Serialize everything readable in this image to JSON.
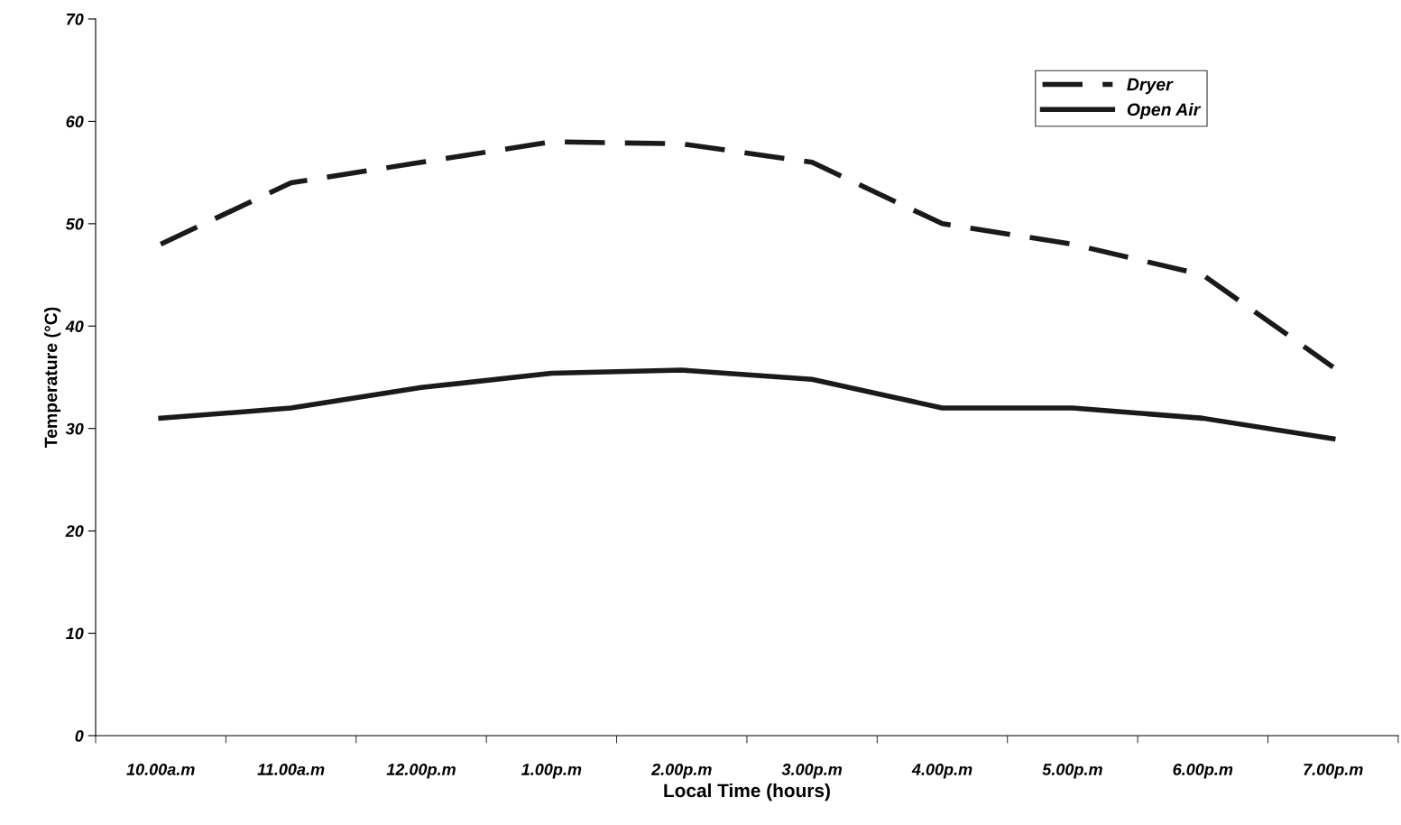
{
  "chart_data": {
    "type": "line",
    "xlabel": "Local Time (hours)",
    "ylabel": "Temperature (°C)",
    "categories": [
      "10.00a.m",
      "11.00a.m",
      "12.00p.m",
      "1.00p.m",
      "2.00p.m",
      "3.00p.m",
      "4.00p.m",
      "5.00p.m",
      "6.00p.m",
      "7.00p.m"
    ],
    "series": [
      {
        "name": "Dryer",
        "color": "#1a1a1a",
        "line_style": "dashed",
        "values": [
          48,
          54,
          56,
          58,
          57.8,
          56,
          50,
          48,
          45,
          36
        ]
      },
      {
        "name": "Open Air",
        "color": "#1a1a1a",
        "line_style": "solid",
        "values": [
          31,
          32,
          34,
          35.4,
          35.7,
          34.8,
          32,
          32,
          31,
          29
        ]
      }
    ],
    "ylim": [
      0,
      70
    ],
    "yticks": [
      0,
      10,
      20,
      30,
      40,
      50,
      60,
      70
    ],
    "grid": false,
    "legend": "top right",
    "marker": "none"
  }
}
